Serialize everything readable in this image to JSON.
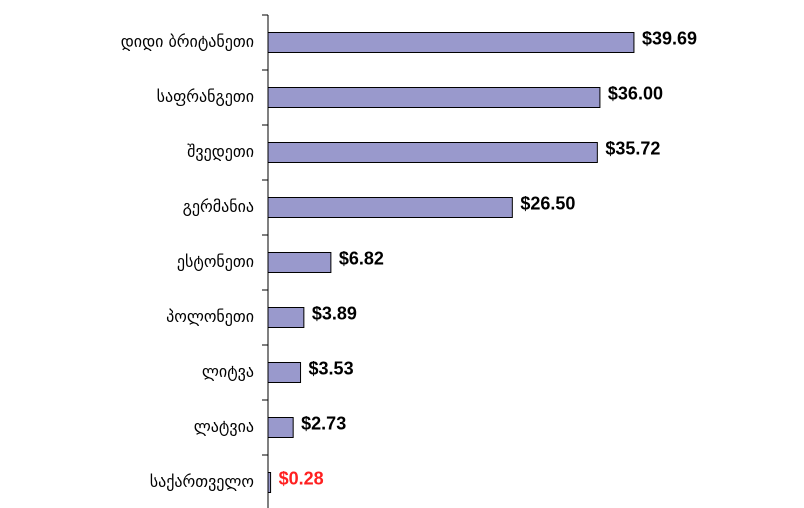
{
  "chart_data": {
    "type": "hbar",
    "categories": [
      "დიდი ბრიტანეთი",
      "საფრანგეთი",
      "შვედეთი",
      "გერმანია",
      "ესტონეთი",
      "პოლონეთი",
      "ლიტვა",
      "ლატვია",
      "საქართველო"
    ],
    "values": [
      39.69,
      36.0,
      35.72,
      26.5,
      6.82,
      3.89,
      3.53,
      2.73,
      0.28
    ],
    "value_labels": [
      "$39.69",
      "$36.00",
      "$35.72",
      "$26.50",
      "$6.82",
      "$3.89",
      "$3.53",
      "$2.73",
      "$0.28"
    ],
    "value_label_colors": [
      "#000000",
      "#000000",
      "#000000",
      "#000000",
      "#000000",
      "#000000",
      "#000000",
      "#000000",
      "#ff2020"
    ],
    "color": "#9999cc"
  }
}
